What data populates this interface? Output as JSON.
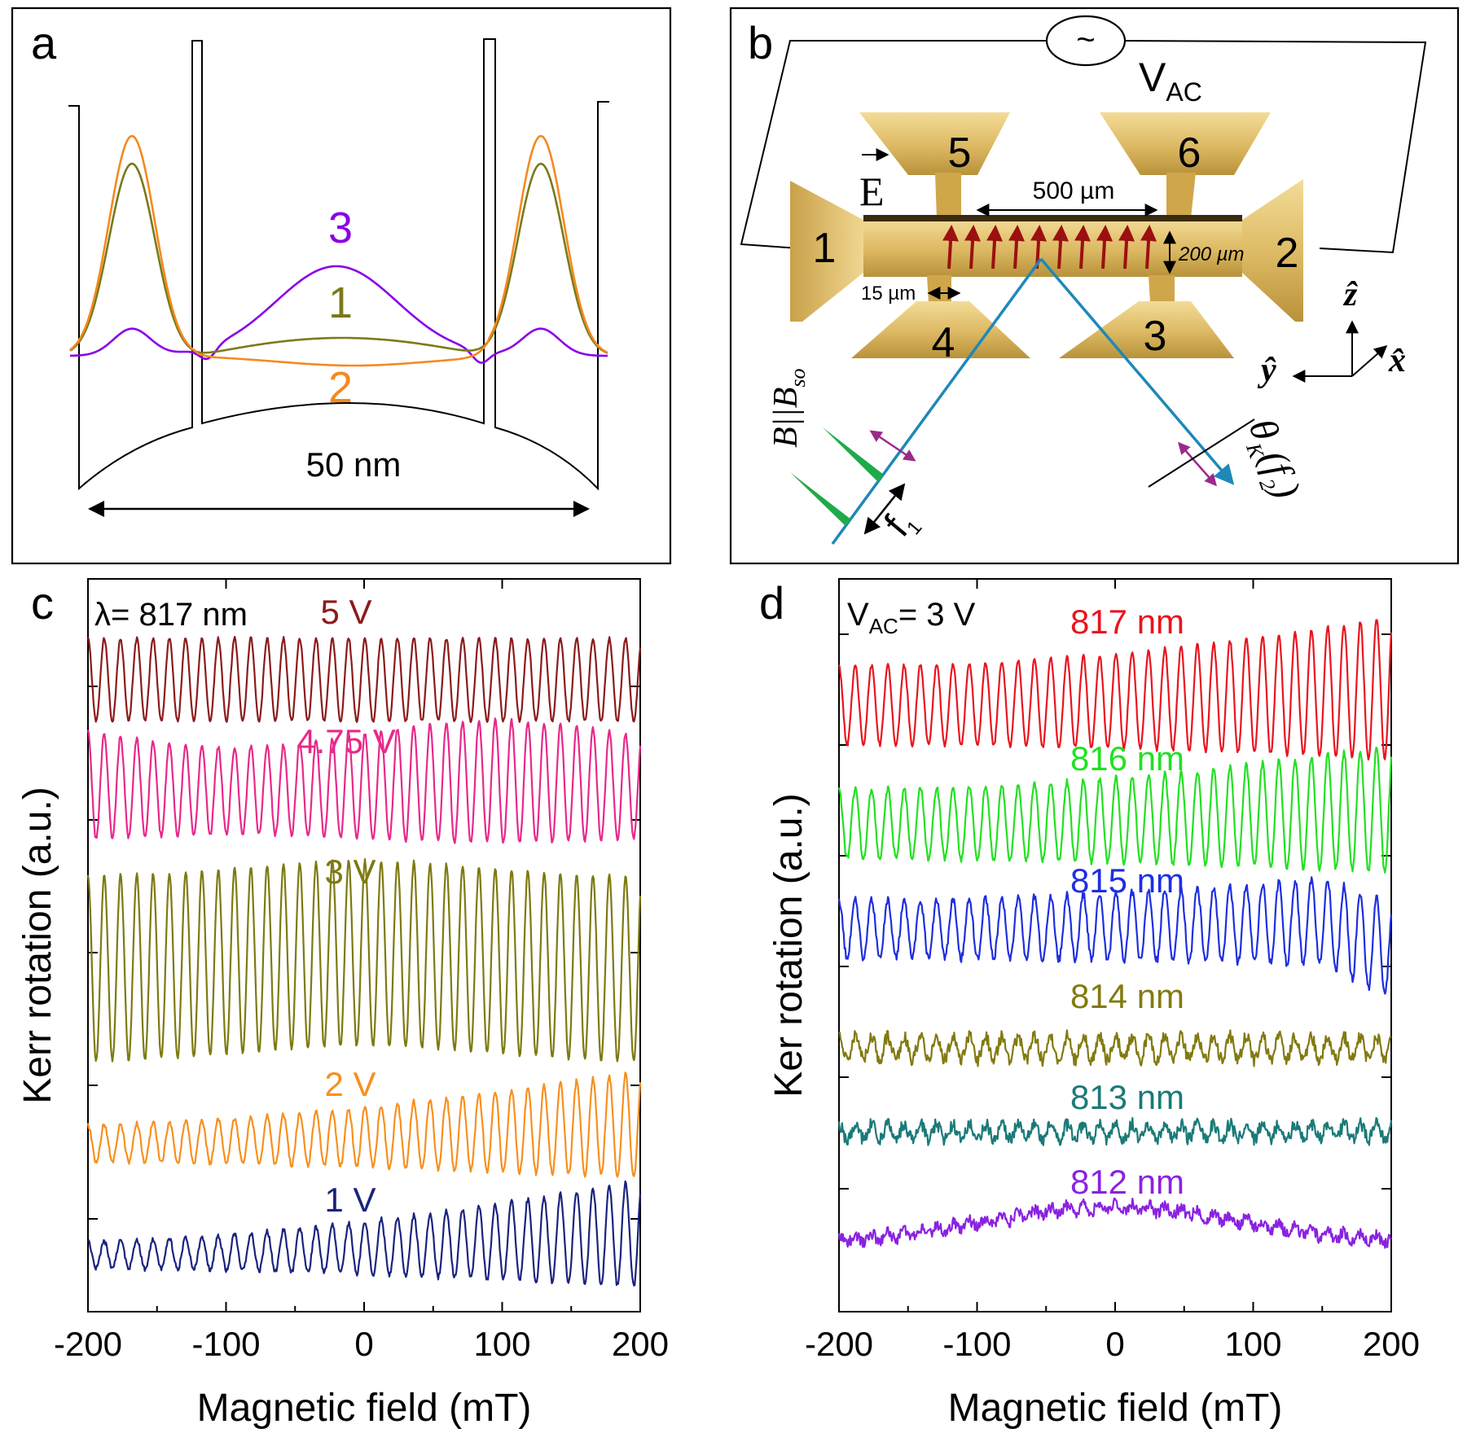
{
  "panels": {
    "a": {
      "label": "a",
      "dimension_label": "50 nm",
      "state_labels": [
        {
          "text": "3",
          "color": "#8a00e6"
        },
        {
          "text": "1",
          "color": "#7a7a1a"
        },
        {
          "text": "2",
          "color": "#f5891f"
        }
      ]
    },
    "b": {
      "label": "b",
      "voltage_source": "~",
      "vac_main": "V",
      "vac_sub": "AC",
      "e_field": "E",
      "contacts": [
        "1",
        "2",
        "3",
        "4",
        "5",
        "6"
      ],
      "dim_500": "500 µm",
      "dim_200": "200 µm",
      "dim_15": "15 µm",
      "b_label": "B||B",
      "b_sub": "so",
      "theta_label": "θ",
      "theta_sub": "K",
      "theta_arg": "(f",
      "theta_arg_sub": "2",
      "theta_close": ")",
      "f1_main": "f",
      "f1_sub": "1",
      "axes": {
        "z": "ẑ",
        "y": "ŷ",
        "x": "x̂"
      }
    },
    "c": {
      "label": "c",
      "lambda_label": "λ= 817 nm"
    },
    "d": {
      "label": "d",
      "vac_prefix": "V",
      "vac_sub": "AC",
      "vac_value": "= 3 V"
    }
  },
  "colors": {
    "dark_red": "#8b1a1a",
    "pink": "#e8288a",
    "olive": "#7d7a10",
    "orange": "#f7901e",
    "navy": "#1a237e",
    "red": "#e8141e",
    "green": "#22e022",
    "blue": "#1e2ee0",
    "olive2": "#827a10",
    "teal": "#1a7a78",
    "purple": "#8a22e0",
    "gold": "#d9b65a"
  },
  "chart_data": [
    {
      "panel": "a",
      "type": "line",
      "title": "",
      "xlabel": "50 nm",
      "ylabel": "",
      "series": [
        {
          "name": "3",
          "color": "#8a00e6",
          "profile": "one central maximum, small side lobes in the outer wells"
        },
        {
          "name": "1",
          "color": "#7a7a1a",
          "profile": "large side maxima, weak flat center"
        },
        {
          "name": "2",
          "color": "#f5891f",
          "profile": "large side maxima, slight central dip"
        }
      ]
    },
    {
      "panel": "c",
      "type": "line",
      "xlabel": "Magnetic field (mT)",
      "ylabel": "Kerr rotation (a.u.)",
      "xlim": [
        -200,
        200
      ],
      "xticks": [
        "-200",
        "-100",
        "0",
        "100",
        "200"
      ],
      "series": [
        {
          "name": "5 V",
          "color": "#8b1a1a",
          "amplitude_au": 0.55,
          "period_mT": 11.8
        },
        {
          "name": "4.75 V",
          "color": "#e8288a",
          "amplitude_au": 0.75,
          "period_mT": 11.8
        },
        {
          "name": "3 V",
          "color": "#7d7a10",
          "amplitude_au": 1.25,
          "period_mT": 11.8
        },
        {
          "name": "2 V",
          "color": "#f7901e",
          "amplitude_au": 0.55,
          "period_mT": 11.8
        },
        {
          "name": "1 V",
          "color": "#1a237e",
          "amplitude_au": 0.45,
          "period_mT": 11.8
        }
      ]
    },
    {
      "panel": "d",
      "type": "line",
      "xlabel": "Magnetic field (mT)",
      "ylabel": "Ker rotation (a.u.)",
      "xlim": [
        -200,
        200
      ],
      "xticks": [
        "-200",
        "-100",
        "0",
        "100",
        "200"
      ],
      "series": [
        {
          "name": "817 nm",
          "color": "#e8141e",
          "amplitude_au": 0.85,
          "period_mT": 11.8
        },
        {
          "name": "816 nm",
          "color": "#22e022",
          "amplitude_au": 0.8,
          "period_mT": 11.8
        },
        {
          "name": "815 nm",
          "color": "#1e2ee0",
          "amplitude_au": 0.6,
          "period_mT": 11.8
        },
        {
          "name": "814 nm",
          "color": "#827a10",
          "amplitude_au": 0.2,
          "period_mT": 11.8
        },
        {
          "name": "813 nm",
          "color": "#1a7a78",
          "amplitude_au": 0.15,
          "period_mT": 11.8
        },
        {
          "name": "812 nm",
          "color": "#8a22e0",
          "amplitude_au": 0.15,
          "period_mT": 11.8
        }
      ]
    }
  ]
}
